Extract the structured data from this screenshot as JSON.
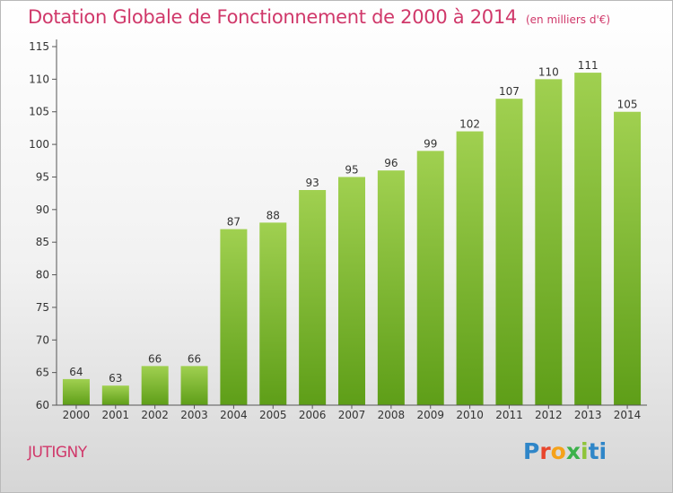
{
  "title": "Dotation Globale de Fonctionnement de 2000 à 2014",
  "unit": "(en milliers d'€)",
  "city": "JUTIGNY",
  "logo": {
    "letters": [
      "P",
      "r",
      "o",
      "x",
      "i",
      "ti"
    ]
  },
  "colors": {
    "title": "#d0386a",
    "bar_top": "#a0d050",
    "bar_bottom": "#5e9e18",
    "axis": "#555555"
  },
  "chart_data": {
    "type": "bar",
    "categories": [
      "2000",
      "2001",
      "2002",
      "2003",
      "2004",
      "2005",
      "2006",
      "2007",
      "2008",
      "2009",
      "2010",
      "2011",
      "2012",
      "2013",
      "2014"
    ],
    "values": [
      64,
      63,
      66,
      66,
      87,
      88,
      93,
      95,
      96,
      99,
      102,
      107,
      110,
      111,
      105
    ],
    "title": "Dotation Globale de Fonctionnement de 2000 à 2014",
    "xlabel": "",
    "ylabel": "",
    "ylim": [
      60,
      115
    ],
    "yticks": [
      60,
      65,
      70,
      75,
      80,
      85,
      90,
      95,
      100,
      105,
      110,
      115
    ],
    "grid": false,
    "data_labels": true
  }
}
